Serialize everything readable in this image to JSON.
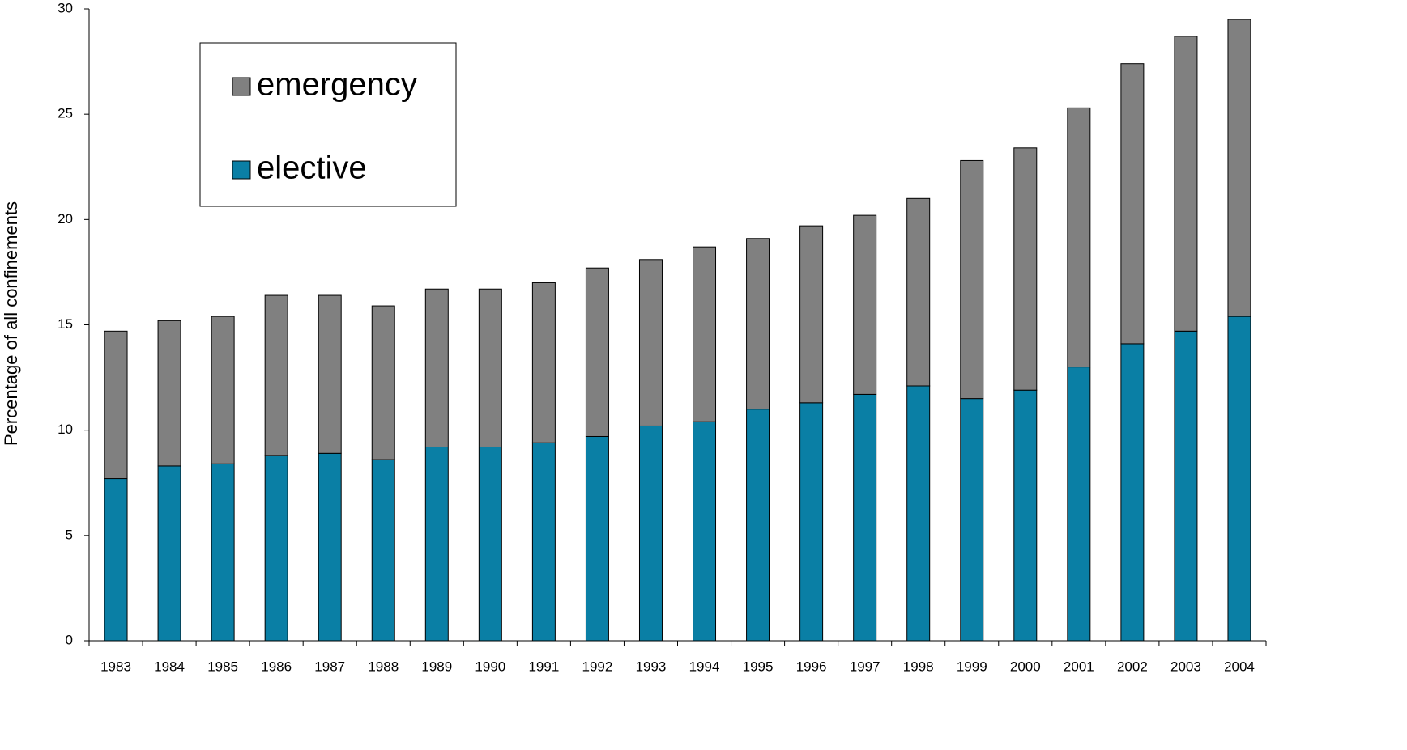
{
  "chart_data": {
    "type": "stacked_bar",
    "y_label": "Percentage of all confinements",
    "categories": [
      "1983",
      "1984",
      "1985",
      "1986",
      "1987",
      "1988",
      "1989",
      "1990",
      "1991",
      "1992",
      "1993",
      "1994",
      "1995",
      "1996",
      "1997",
      "1998",
      "1999",
      "2000",
      "2001",
      "2002",
      "2003",
      "2004"
    ],
    "series": [
      {
        "name": "elective",
        "color": "#0a7fa5",
        "values": [
          7.7,
          8.3,
          8.4,
          8.8,
          8.9,
          8.6,
          9.2,
          9.2,
          9.4,
          9.7,
          10.2,
          10.4,
          11.0,
          11.3,
          11.7,
          12.1,
          11.5,
          11.9,
          13.0,
          14.1,
          14.7,
          15.4
        ]
      },
      {
        "name": "emergency",
        "color": "#808080",
        "values": [
          7.0,
          6.9,
          7.0,
          7.6,
          7.5,
          7.3,
          7.5,
          7.5,
          7.6,
          8.0,
          7.9,
          8.3,
          8.1,
          8.4,
          8.5,
          8.9,
          11.3,
          11.5,
          12.3,
          13.3,
          14.0,
          14.1
        ]
      }
    ],
    "ylim": [
      0,
      30
    ],
    "yticks": [
      0,
      5,
      10,
      15,
      20,
      25,
      30
    ],
    "legend": "top-left"
  }
}
